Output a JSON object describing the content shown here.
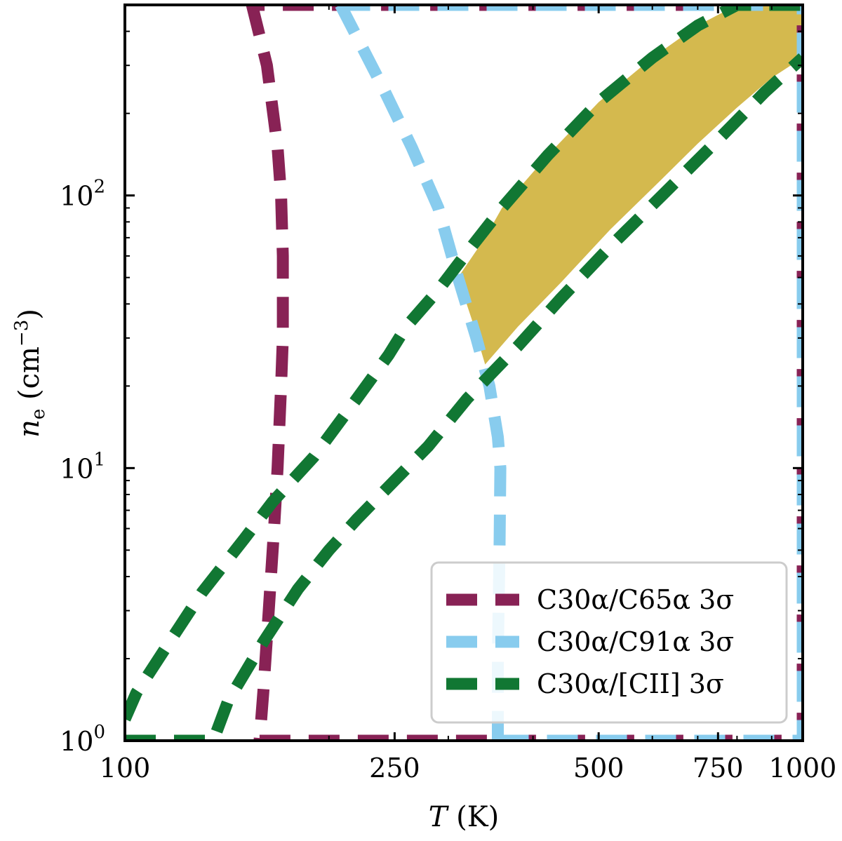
{
  "chart_data": {
    "type": "line",
    "xscale": "log",
    "yscale": "log",
    "xlabel": "T (K)",
    "ylabel": "n_e (cm^-3)",
    "xlim": [
      100,
      1000
    ],
    "ylim": [
      1,
      500
    ],
    "x_ticks": [
      100,
      250,
      500,
      750,
      1000
    ],
    "x_tick_labels": [
      "100",
      "250",
      "500",
      "750",
      "1000"
    ],
    "y_ticks": [
      1,
      10,
      100
    ],
    "y_tick_labels": [
      {
        "base": "10",
        "exp": "0"
      },
      {
        "base": "10",
        "exp": "1"
      },
      {
        "base": "10",
        "exp": "2"
      }
    ],
    "legend_position": "lower-right",
    "series": [
      {
        "name": "C30α/C65α 3σ",
        "label_main": "C30α/C65α",
        "label_sigma": "3σ",
        "color": "#882255",
        "bounds": [
          {
            "x": [
              154,
              162,
              168,
              170,
              171,
              171,
              170,
              168,
              166,
              163,
              160,
              158
            ],
            "y": [
              500,
              300,
              150,
              100,
              60,
              30,
              20,
              10,
              6,
              3,
              1.5,
              1
            ]
          },
          {
            "x": [
              158,
              400,
              1000,
              1000,
              1000,
              154
            ],
            "y": [
              1,
              1,
              1,
              100,
              500,
              500
            ]
          }
        ]
      },
      {
        "name": "C30α/C91α 3σ",
        "label_main": "C30α/C91α",
        "label_sigma": "3σ",
        "color": "#88CCEE",
        "bounds": [
          {
            "x": [
              208,
              240,
              265,
              290,
              310,
              330,
              345,
              355,
              358,
              357,
              355,
              355
            ],
            "y": [
              500,
              250,
              150,
              90,
              50,
              30,
              20,
              13,
              10,
              5,
              2,
              1
            ]
          },
          {
            "x": [
              355,
              600,
              1000,
              1000,
              1000,
              208
            ],
            "y": [
              1,
              1,
              1,
              100,
              500,
              500
            ]
          }
        ]
      },
      {
        "name": "C30α/[CII] 3σ",
        "label_main": "C30α/[CII]",
        "label_sigma": "3σ",
        "color": "#117733",
        "bounds": [
          {
            "x": [
              100,
              104,
              115,
              130,
              150,
              165,
              190,
              220,
              245,
              260,
              290,
              320,
              360,
              420,
              500,
              600,
              700,
              800,
              1000
            ],
            "y": [
              1.2,
              1.5,
              2.2,
              3.5,
              5.5,
              7.5,
              11,
              18,
              26,
              33,
              45,
              62,
              90,
              140,
              220,
              320,
              420,
              500,
              500
            ]
          },
          {
            "x": [
              100,
              115,
              135,
              142,
              160,
              180,
              200,
              220,
              250,
              280,
              320,
              380,
              440,
              520,
              620,
              750,
              880,
              1000
            ],
            "y": [
              1,
              1,
              1,
              1.4,
              2.3,
              3.6,
              5,
              6.5,
              9,
              12,
              18,
              28,
              42,
              65,
              100,
              160,
              240,
              320
            ]
          }
        ]
      }
    ],
    "shaded_region": {
      "color": "#D4B94E",
      "x": [
        310,
        340,
        360,
        420,
        500,
        600,
        700,
        800,
        900,
        1000,
        1000,
        900,
        800,
        700,
        620,
        520,
        440,
        380,
        340,
        325
      ],
      "y": [
        50,
        70,
        90,
        140,
        220,
        320,
        420,
        500,
        500,
        500,
        320,
        270,
        210,
        155,
        115,
        75,
        48,
        33,
        24,
        35
      ]
    }
  }
}
